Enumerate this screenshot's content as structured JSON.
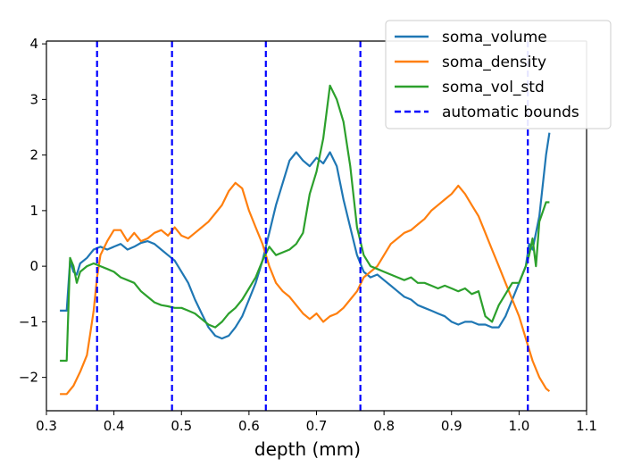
{
  "chart_data": {
    "type": "line",
    "xlabel": "depth (mm)",
    "ylabel": "",
    "xlim": [
      0.3,
      1.1
    ],
    "ylim": [
      -2.6,
      4.05
    ],
    "xticks": [
      "0.3",
      "0.4",
      "0.5",
      "0.6",
      "0.7",
      "0.8",
      "0.9",
      "1.0",
      "1.1"
    ],
    "yticks": [
      "−2",
      "−1",
      "0",
      "1",
      "2",
      "3",
      "4"
    ],
    "legend_position": "upper-right",
    "series": [
      {
        "name": "soma_volume",
        "color": "#1f77b4",
        "points": [
          [
            0.32,
            -0.8
          ],
          [
            0.33,
            -0.8
          ],
          [
            0.335,
            0.1
          ],
          [
            0.34,
            -0.1
          ],
          [
            0.345,
            -0.15
          ],
          [
            0.35,
            0.05
          ],
          [
            0.36,
            0.15
          ],
          [
            0.37,
            0.3
          ],
          [
            0.38,
            0.35
          ],
          [
            0.39,
            0.3
          ],
          [
            0.4,
            0.35
          ],
          [
            0.41,
            0.4
          ],
          [
            0.42,
            0.3
          ],
          [
            0.43,
            0.35
          ],
          [
            0.44,
            0.42
          ],
          [
            0.45,
            0.45
          ],
          [
            0.46,
            0.4
          ],
          [
            0.47,
            0.3
          ],
          [
            0.48,
            0.2
          ],
          [
            0.49,
            0.1
          ],
          [
            0.5,
            -0.1
          ],
          [
            0.51,
            -0.3
          ],
          [
            0.52,
            -0.6
          ],
          [
            0.53,
            -0.85
          ],
          [
            0.54,
            -1.1
          ],
          [
            0.55,
            -1.25
          ],
          [
            0.56,
            -1.3
          ],
          [
            0.57,
            -1.25
          ],
          [
            0.58,
            -1.1
          ],
          [
            0.59,
            -0.9
          ],
          [
            0.6,
            -0.6
          ],
          [
            0.61,
            -0.3
          ],
          [
            0.62,
            0.1
          ],
          [
            0.63,
            0.6
          ],
          [
            0.64,
            1.1
          ],
          [
            0.65,
            1.5
          ],
          [
            0.66,
            1.9
          ],
          [
            0.67,
            2.05
          ],
          [
            0.68,
            1.9
          ],
          [
            0.69,
            1.8
          ],
          [
            0.7,
            1.95
          ],
          [
            0.71,
            1.85
          ],
          [
            0.72,
            2.05
          ],
          [
            0.73,
            1.8
          ],
          [
            0.74,
            1.2
          ],
          [
            0.75,
            0.7
          ],
          [
            0.76,
            0.2
          ],
          [
            0.77,
            -0.1
          ],
          [
            0.78,
            -0.2
          ],
          [
            0.79,
            -0.15
          ],
          [
            0.8,
            -0.25
          ],
          [
            0.81,
            -0.35
          ],
          [
            0.82,
            -0.45
          ],
          [
            0.83,
            -0.55
          ],
          [
            0.84,
            -0.6
          ],
          [
            0.85,
            -0.7
          ],
          [
            0.86,
            -0.75
          ],
          [
            0.87,
            -0.8
          ],
          [
            0.88,
            -0.85
          ],
          [
            0.89,
            -0.9
          ],
          [
            0.9,
            -1.0
          ],
          [
            0.91,
            -1.05
          ],
          [
            0.92,
            -1.0
          ],
          [
            0.93,
            -1.0
          ],
          [
            0.94,
            -1.05
          ],
          [
            0.95,
            -1.05
          ],
          [
            0.96,
            -1.1
          ],
          [
            0.97,
            -1.1
          ],
          [
            0.98,
            -0.9
          ],
          [
            0.99,
            -0.6
          ],
          [
            1.0,
            -0.3
          ],
          [
            1.01,
            0.0
          ],
          [
            1.015,
            0.4
          ],
          [
            1.02,
            0.3
          ],
          [
            1.03,
            0.9
          ],
          [
            1.04,
            2.0
          ],
          [
            1.045,
            2.4
          ]
        ]
      },
      {
        "name": "soma_density",
        "color": "#ff7f0e",
        "points": [
          [
            0.32,
            -2.3
          ],
          [
            0.33,
            -2.3
          ],
          [
            0.34,
            -2.15
          ],
          [
            0.35,
            -1.9
          ],
          [
            0.36,
            -1.6
          ],
          [
            0.365,
            -1.2
          ],
          [
            0.37,
            -0.8
          ],
          [
            0.375,
            -0.2
          ],
          [
            0.38,
            0.2
          ],
          [
            0.39,
            0.45
          ],
          [
            0.4,
            0.65
          ],
          [
            0.41,
            0.65
          ],
          [
            0.42,
            0.45
          ],
          [
            0.43,
            0.6
          ],
          [
            0.44,
            0.45
          ],
          [
            0.45,
            0.5
          ],
          [
            0.46,
            0.6
          ],
          [
            0.47,
            0.65
          ],
          [
            0.48,
            0.55
          ],
          [
            0.49,
            0.7
          ],
          [
            0.5,
            0.55
          ],
          [
            0.51,
            0.5
          ],
          [
            0.52,
            0.6
          ],
          [
            0.53,
            0.7
          ],
          [
            0.54,
            0.8
          ],
          [
            0.55,
            0.95
          ],
          [
            0.56,
            1.1
          ],
          [
            0.57,
            1.35
          ],
          [
            0.58,
            1.5
          ],
          [
            0.59,
            1.4
          ],
          [
            0.6,
            1.0
          ],
          [
            0.61,
            0.7
          ],
          [
            0.62,
            0.4
          ],
          [
            0.63,
            0.0
          ],
          [
            0.64,
            -0.3
          ],
          [
            0.65,
            -0.45
          ],
          [
            0.66,
            -0.55
          ],
          [
            0.67,
            -0.7
          ],
          [
            0.68,
            -0.85
          ],
          [
            0.69,
            -0.95
          ],
          [
            0.7,
            -0.85
          ],
          [
            0.71,
            -1.0
          ],
          [
            0.72,
            -0.9
          ],
          [
            0.73,
            -0.85
          ],
          [
            0.74,
            -0.75
          ],
          [
            0.75,
            -0.6
          ],
          [
            0.76,
            -0.45
          ],
          [
            0.77,
            -0.2
          ],
          [
            0.78,
            -0.1
          ],
          [
            0.79,
            0.0
          ],
          [
            0.8,
            0.2
          ],
          [
            0.81,
            0.4
          ],
          [
            0.82,
            0.5
          ],
          [
            0.83,
            0.6
          ],
          [
            0.84,
            0.65
          ],
          [
            0.85,
            0.75
          ],
          [
            0.86,
            0.85
          ],
          [
            0.87,
            1.0
          ],
          [
            0.88,
            1.1
          ],
          [
            0.89,
            1.2
          ],
          [
            0.9,
            1.3
          ],
          [
            0.91,
            1.45
          ],
          [
            0.92,
            1.3
          ],
          [
            0.93,
            1.1
          ],
          [
            0.94,
            0.9
          ],
          [
            0.95,
            0.6
          ],
          [
            0.96,
            0.3
          ],
          [
            0.97,
            0.0
          ],
          [
            0.98,
            -0.3
          ],
          [
            0.99,
            -0.6
          ],
          [
            1.0,
            -0.9
          ],
          [
            1.01,
            -1.3
          ],
          [
            1.02,
            -1.7
          ],
          [
            1.03,
            -2.0
          ],
          [
            1.04,
            -2.2
          ],
          [
            1.045,
            -2.25
          ]
        ]
      },
      {
        "name": "soma_vol_std",
        "color": "#2ca02c",
        "points": [
          [
            0.32,
            -1.7
          ],
          [
            0.33,
            -1.7
          ],
          [
            0.335,
            0.15
          ],
          [
            0.34,
            0.0
          ],
          [
            0.345,
            -0.3
          ],
          [
            0.35,
            -0.1
          ],
          [
            0.36,
            0.0
          ],
          [
            0.37,
            0.05
          ],
          [
            0.38,
            0.0
          ],
          [
            0.39,
            -0.05
          ],
          [
            0.4,
            -0.1
          ],
          [
            0.41,
            -0.2
          ],
          [
            0.42,
            -0.25
          ],
          [
            0.43,
            -0.3
          ],
          [
            0.44,
            -0.45
          ],
          [
            0.45,
            -0.55
          ],
          [
            0.46,
            -0.65
          ],
          [
            0.47,
            -0.7
          ],
          [
            0.48,
            -0.72
          ],
          [
            0.49,
            -0.75
          ],
          [
            0.5,
            -0.75
          ],
          [
            0.51,
            -0.8
          ],
          [
            0.52,
            -0.85
          ],
          [
            0.53,
            -0.95
          ],
          [
            0.54,
            -1.05
          ],
          [
            0.55,
            -1.1
          ],
          [
            0.56,
            -1.0
          ],
          [
            0.57,
            -0.85
          ],
          [
            0.58,
            -0.75
          ],
          [
            0.59,
            -0.6
          ],
          [
            0.6,
            -0.4
          ],
          [
            0.61,
            -0.2
          ],
          [
            0.62,
            0.1
          ],
          [
            0.63,
            0.35
          ],
          [
            0.64,
            0.2
          ],
          [
            0.65,
            0.25
          ],
          [
            0.66,
            0.3
          ],
          [
            0.67,
            0.4
          ],
          [
            0.68,
            0.6
          ],
          [
            0.69,
            1.3
          ],
          [
            0.7,
            1.7
          ],
          [
            0.71,
            2.3
          ],
          [
            0.72,
            3.25
          ],
          [
            0.73,
            3.0
          ],
          [
            0.74,
            2.6
          ],
          [
            0.75,
            1.8
          ],
          [
            0.76,
            0.7
          ],
          [
            0.77,
            0.2
          ],
          [
            0.78,
            0.0
          ],
          [
            0.79,
            -0.05
          ],
          [
            0.8,
            -0.1
          ],
          [
            0.81,
            -0.15
          ],
          [
            0.82,
            -0.2
          ],
          [
            0.83,
            -0.25
          ],
          [
            0.84,
            -0.2
          ],
          [
            0.85,
            -0.3
          ],
          [
            0.86,
            -0.3
          ],
          [
            0.87,
            -0.35
          ],
          [
            0.88,
            -0.4
          ],
          [
            0.89,
            -0.35
          ],
          [
            0.9,
            -0.4
          ],
          [
            0.91,
            -0.45
          ],
          [
            0.92,
            -0.4
          ],
          [
            0.93,
            -0.5
          ],
          [
            0.94,
            -0.45
          ],
          [
            0.95,
            -0.9
          ],
          [
            0.96,
            -1.0
          ],
          [
            0.97,
            -0.7
          ],
          [
            0.98,
            -0.5
          ],
          [
            0.99,
            -0.3
          ],
          [
            1.0,
            -0.3
          ],
          [
            1.01,
            0.0
          ],
          [
            1.015,
            0.2
          ],
          [
            1.02,
            0.5
          ],
          [
            1.025,
            0.0
          ],
          [
            1.03,
            0.8
          ],
          [
            1.04,
            1.15
          ],
          [
            1.045,
            1.15
          ]
        ]
      },
      {
        "name": "automatic bounds",
        "color": "#0000ff",
        "style": "dashed",
        "vlines": [
          0.375,
          0.486,
          0.625,
          0.765,
          1.013
        ]
      }
    ]
  }
}
